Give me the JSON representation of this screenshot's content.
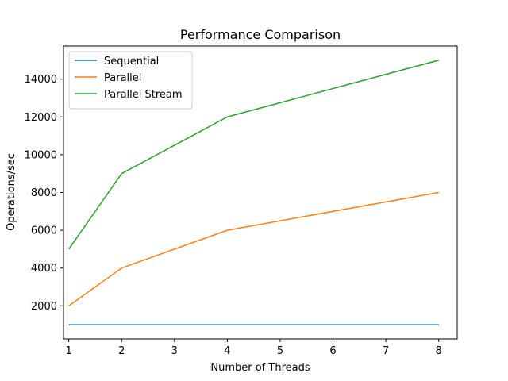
{
  "chart_data": {
    "type": "line",
    "title": "Performance Comparison",
    "xlabel": "Number of Threads",
    "ylabel": "Operations/sec",
    "x": [
      1,
      2,
      4,
      8
    ],
    "xlim": [
      0.9,
      8.35
    ],
    "ylim": [
      250,
      15750
    ],
    "xticks": [
      1,
      2,
      3,
      4,
      5,
      6,
      7,
      8
    ],
    "yticks": [
      2000,
      4000,
      6000,
      8000,
      10000,
      12000,
      14000
    ],
    "grid": false,
    "legend_position": "top-left",
    "series": [
      {
        "name": "Sequential",
        "color": "#1f77b4",
        "values": [
          1000,
          1000,
          1000,
          1000
        ]
      },
      {
        "name": "Parallel",
        "color": "#ff7f0e",
        "values": [
          2000,
          4000,
          6000,
          8000
        ]
      },
      {
        "name": "Parallel Stream",
        "color": "#2ca02c",
        "values": [
          5000,
          9000,
          12000,
          15000
        ]
      }
    ]
  }
}
